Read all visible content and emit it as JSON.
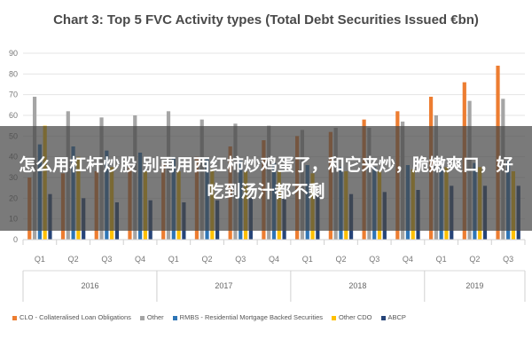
{
  "chart_data": {
    "type": "bar",
    "title": "Chart 3: Top 5 FVC Activity types (Total Debt Securities Issued €bn)",
    "ylim": [
      0,
      90
    ],
    "yticks": [
      0,
      10,
      20,
      30,
      40,
      50,
      60,
      70,
      80,
      90
    ],
    "categories": [
      "Q1",
      "Q2",
      "Q3",
      "Q4",
      "Q1",
      "Q2",
      "Q3",
      "Q4",
      "Q1",
      "Q2",
      "Q3",
      "Q4",
      "Q1",
      "Q2",
      "Q3"
    ],
    "years": [
      {
        "label": "2016",
        "span": 4
      },
      {
        "label": "2017",
        "span": 4
      },
      {
        "label": "2018",
        "span": 4
      },
      {
        "label": "2019",
        "span": 3
      }
    ],
    "series": [
      {
        "name": "CLO - Collateralised Loan Obligations",
        "color": "#ed7d31",
        "values": [
          30,
          32,
          33,
          35,
          37,
          40,
          45,
          48,
          50,
          52,
          58,
          62,
          69,
          76,
          84
        ]
      },
      {
        "name": "Other",
        "color": "#a5a5a5",
        "values": [
          69,
          62,
          59,
          60,
          62,
          58,
          56,
          55,
          53,
          54,
          54,
          57,
          60,
          67,
          68
        ]
      },
      {
        "name": "RMBS - Residential Mortgage Backed Securities",
        "color": "#2e75b6",
        "values": [
          46,
          45,
          43,
          42,
          40,
          39,
          38,
          37,
          36,
          35,
          35,
          36,
          35,
          37,
          38
        ]
      },
      {
        "name": "Other CDO",
        "color": "#ffc000",
        "values": [
          55,
          40,
          35,
          33,
          33,
          34,
          33,
          33,
          32,
          33,
          33,
          34,
          35,
          35,
          33
        ]
      },
      {
        "name": "ABCP",
        "color": "#264478",
        "values": [
          22,
          20,
          18,
          19,
          18,
          19,
          20,
          20,
          21,
          22,
          23,
          24,
          26,
          26,
          26
        ]
      }
    ]
  },
  "overlay": {
    "text": "怎么用杠杆炒股 别再用西红柿炒鸡蛋了，和它来炒，脆嫩爽口，好吃到汤汁都不剩"
  }
}
